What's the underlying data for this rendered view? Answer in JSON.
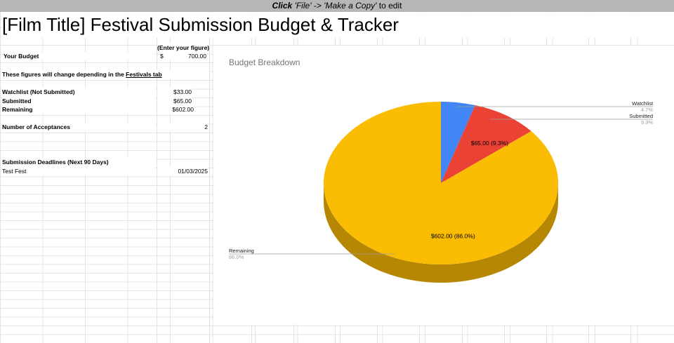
{
  "banner": {
    "click": "Click",
    "file": "'File'",
    "arrow": " -> ",
    "copy": "'Make a Copy'",
    "rest": " to edit"
  },
  "sheet": {
    "title": "[Film Title] Festival Submission Budget & Tracker"
  },
  "budget": {
    "enter_hint": "(Enter your figure)",
    "your_budget_label": "Your Budget",
    "currency": "$",
    "your_budget_value": "700.00",
    "note_prefix": "These figures will change depending in the ",
    "note_link": "Festivals tab",
    "watchlist_label": "Watchlist (Not Submitted)",
    "watchlist_value": "$33.00",
    "submitted_label": "Submitted",
    "submitted_value": "$65.00",
    "remaining_label": "Remaining",
    "remaining_value": "$602.00",
    "acceptances_label": "Number of Acceptances",
    "acceptances_value": "2",
    "deadlines_label": "Submission Deadlines (Next 90 Days)",
    "deadline_fest": "Test Fest",
    "deadline_date": "01/03/2025"
  },
  "chart_data": {
    "type": "pie",
    "title": "Budget Breakdown",
    "slices": [
      {
        "name": "Watchlist",
        "value": 33.0,
        "percent": "4.7%",
        "color": "#4285f4",
        "label": ""
      },
      {
        "name": "Submitted",
        "value": 65.0,
        "percent": "9.3%",
        "color": "#ea4335",
        "label": "$65.00 (9.3%)"
      },
      {
        "name": "Remaining",
        "value": 602.0,
        "percent": "86.0%",
        "color": "#fbbc04",
        "label": "$602.00 (86.0%)"
      }
    ],
    "style": "3d",
    "legend": "callout-labels"
  }
}
